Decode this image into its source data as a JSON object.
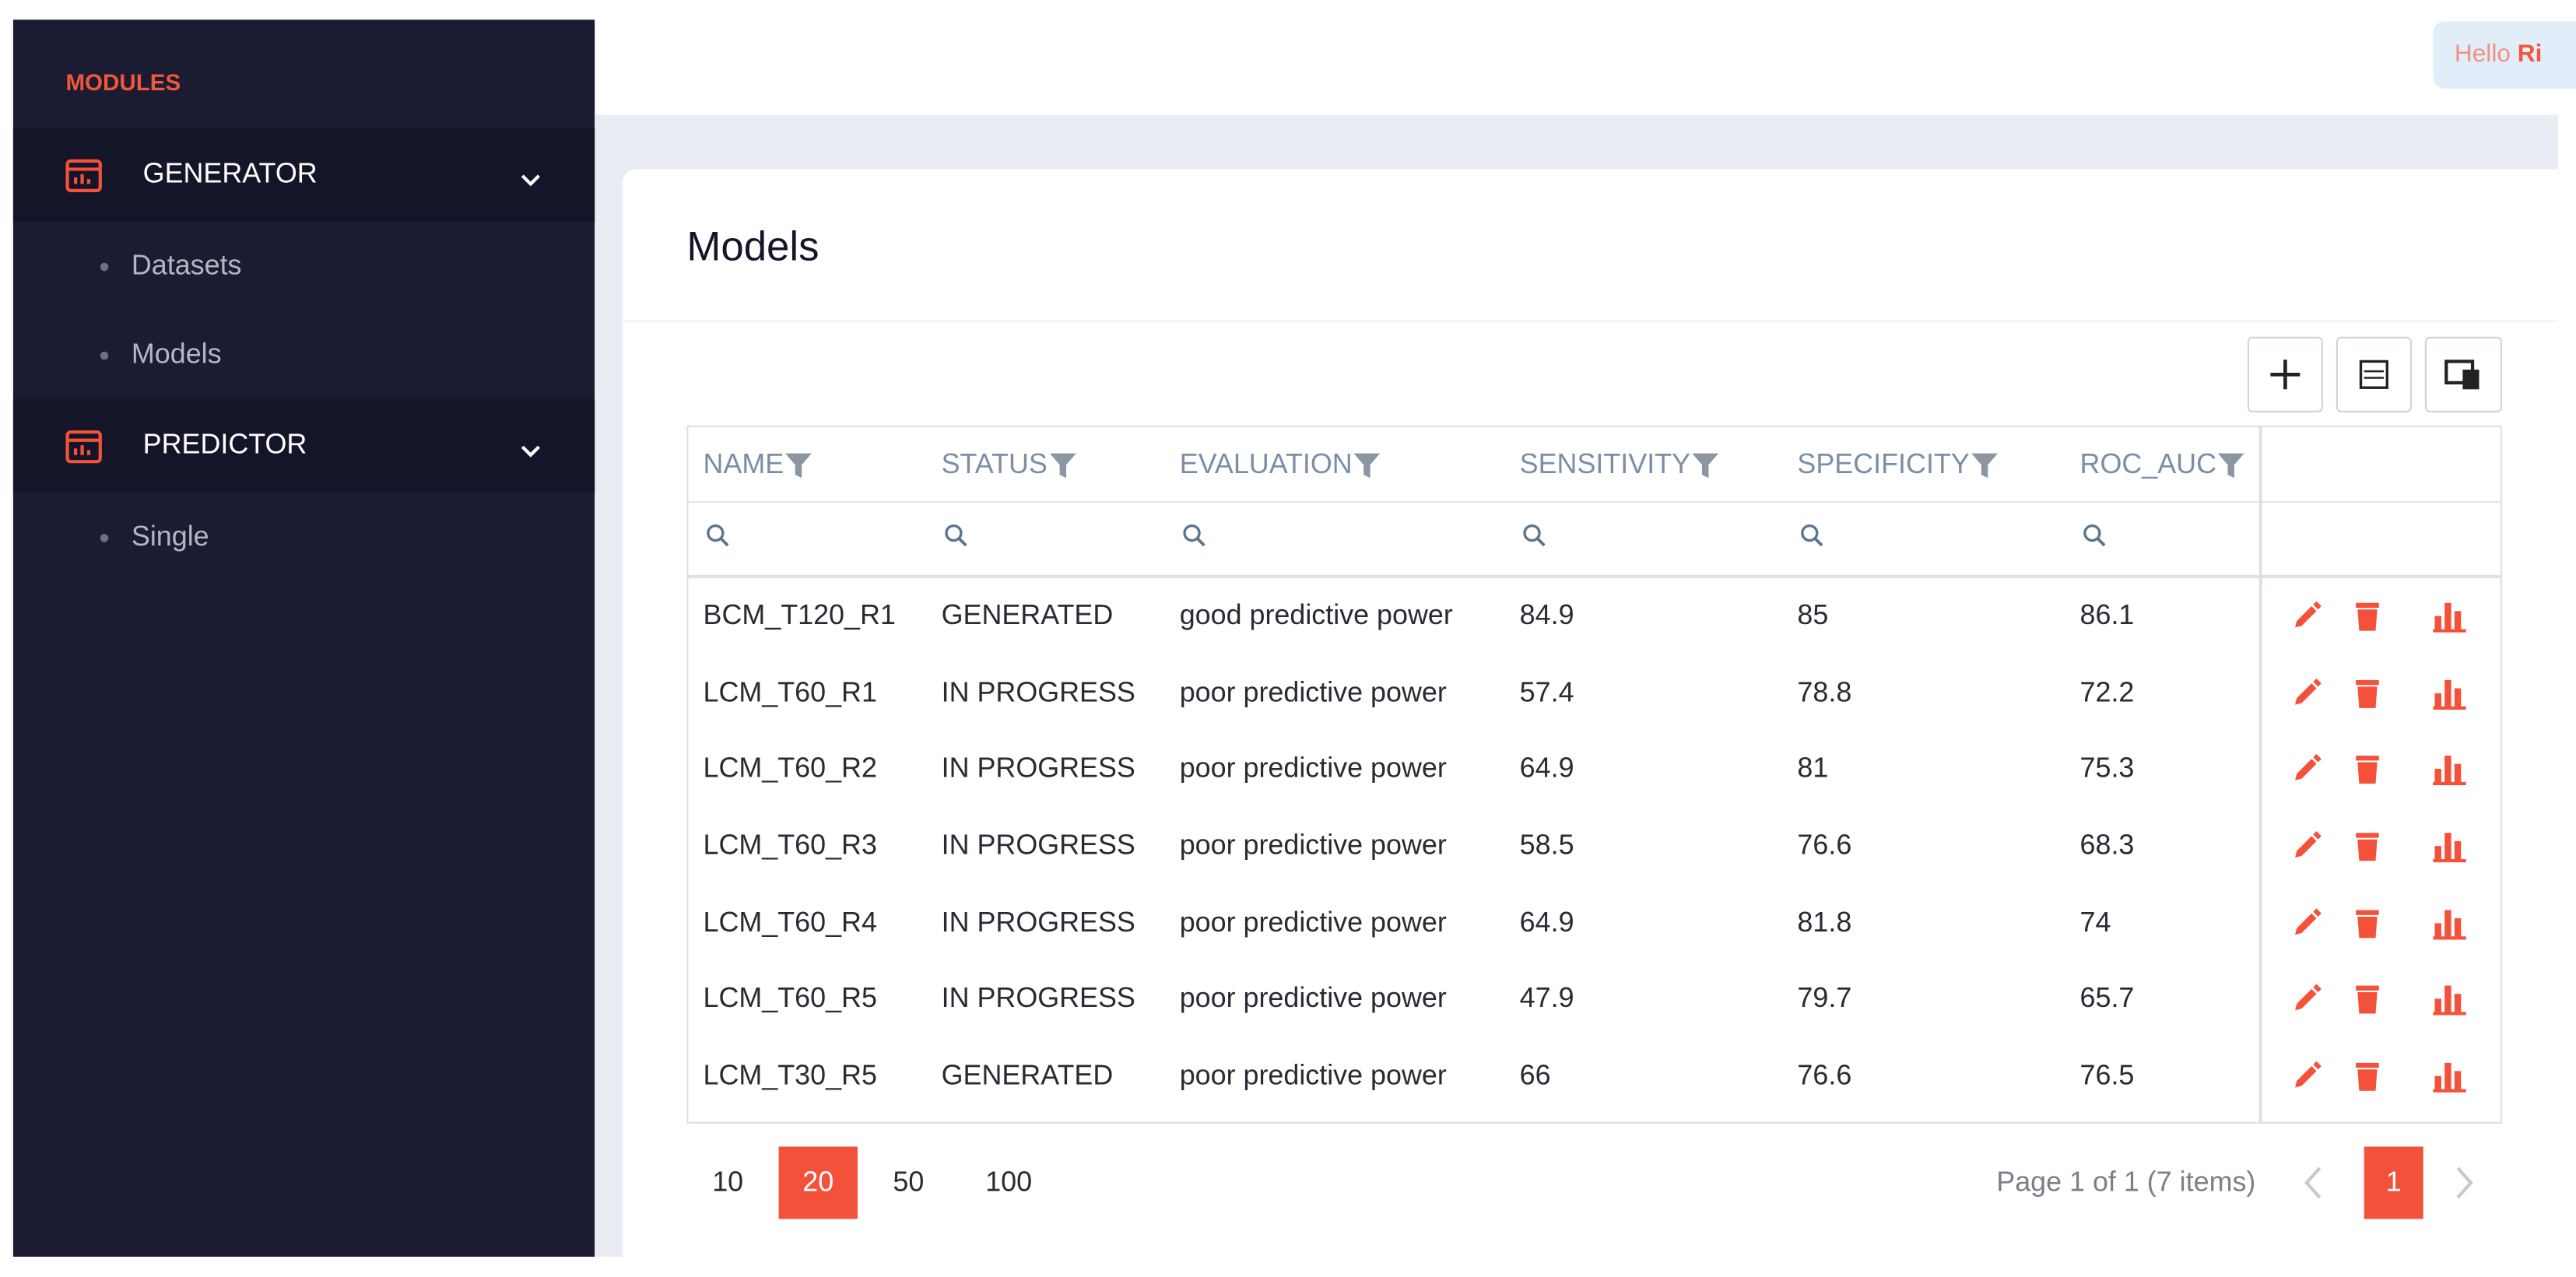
{
  "sidebar": {
    "heading": "MODULES",
    "groups": [
      {
        "label": "GENERATOR",
        "items": [
          "Datasets",
          "Models"
        ]
      },
      {
        "label": "PREDICTOR",
        "items": [
          "Single"
        ]
      }
    ]
  },
  "header": {
    "greeting": "Hello",
    "user": "Ri"
  },
  "page": {
    "title": "Models"
  },
  "table": {
    "columns": [
      "NAME",
      "STATUS",
      "EVALUATION",
      "SENSITIVITY",
      "SPECIFICITY",
      "ROC_AUC"
    ],
    "rows": [
      [
        "BCM_T120_R1",
        "GENERATED",
        "good predictive power",
        84.9,
        85,
        86.1
      ],
      [
        "LCM_T60_R1",
        "IN PROGRESS",
        "poor predictive power",
        57.4,
        78.8,
        72.2
      ],
      [
        "LCM_T60_R2",
        "IN PROGRESS",
        "poor predictive power",
        64.9,
        81,
        75.3
      ],
      [
        "LCM_T60_R3",
        "IN PROGRESS",
        "poor predictive power",
        58.5,
        76.6,
        68.3
      ],
      [
        "LCM_T60_R4",
        "IN PROGRESS",
        "poor predictive power",
        64.9,
        81.8,
        74
      ],
      [
        "LCM_T60_R5",
        "IN PROGRESS",
        "poor predictive power",
        47.9,
        79.7,
        65.7
      ],
      [
        "LCM_T30_R5",
        "GENERATED",
        "poor predictive power",
        66,
        76.6,
        76.5
      ]
    ]
  },
  "pagination": {
    "page_sizes": [
      {
        "size": 10
      },
      {
        "size": 20,
        "active": true
      },
      {
        "size": 50
      },
      {
        "size": 100
      }
    ],
    "summary": "Page 1 of 1 (7 items)",
    "current_page": 1
  }
}
